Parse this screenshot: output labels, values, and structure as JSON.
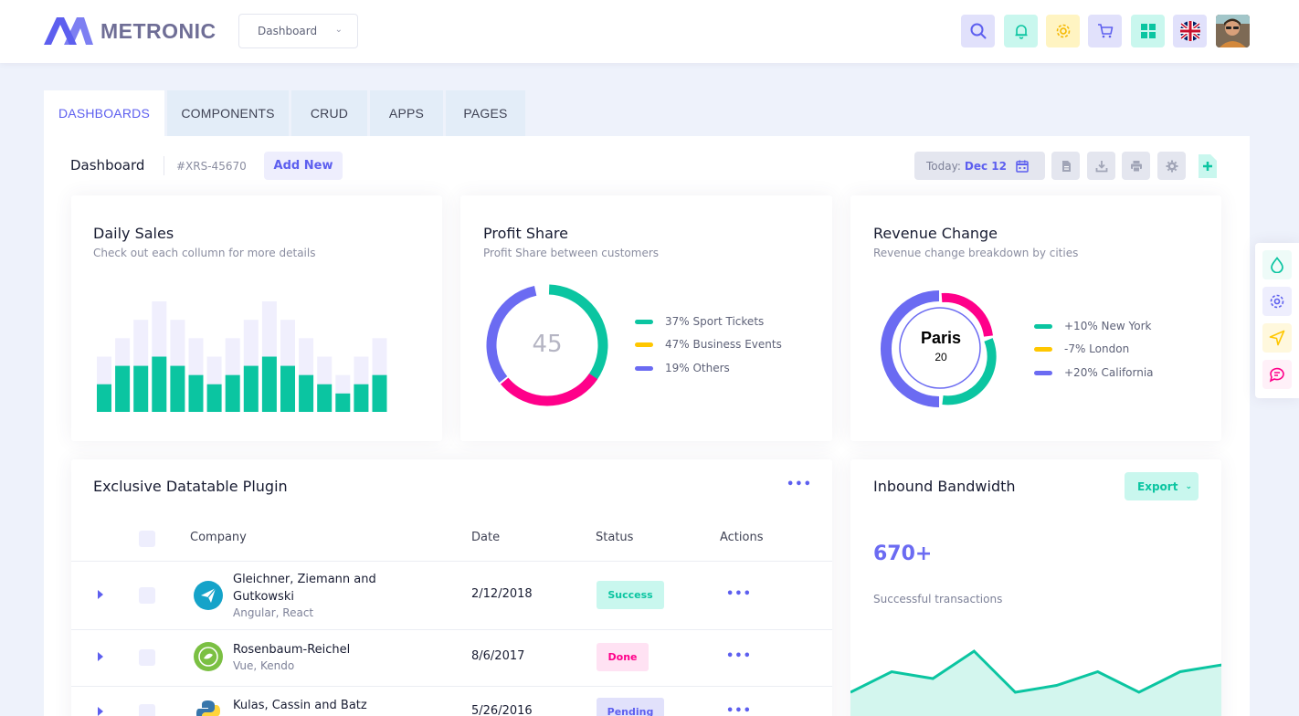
{
  "app": {
    "brand": "METRONIC",
    "dashboard_select": "Dashboard"
  },
  "header": {
    "icons": [
      "search-icon",
      "bell-icon",
      "gear-icon",
      "cart-icon",
      "apps-grid-icon",
      "uk-flag-icon",
      "user-avatar"
    ],
    "colors": {
      "accent": "#5d5fef",
      "success": "#0bc5a1",
      "warning": "#ffc700",
      "danger": "#ff008a"
    }
  },
  "tabs": [
    {
      "label": "DASHBOARDS",
      "active": true
    },
    {
      "label": "COMPONENTS",
      "active": false
    },
    {
      "label": "CRUD",
      "active": false
    },
    {
      "label": "APPS",
      "active": false
    },
    {
      "label": "PAGES",
      "active": false
    }
  ],
  "subheader": {
    "title": "Dashboard",
    "id": "#XRS-45670",
    "add_new": "Add New",
    "today_label": "Today:",
    "today_date": "Dec 12"
  },
  "daily_sales": {
    "title": "Daily Sales",
    "subtitle": "Check out each collumn for more details"
  },
  "profit_share": {
    "title": "Profit Share",
    "subtitle": "Profit Share between customers",
    "center": "45",
    "legend": [
      "37% Sport Tickets",
      "47% Business Events",
      "19% Others"
    ]
  },
  "revenue_change": {
    "title": "Revenue Change",
    "subtitle": "Revenue change breakdown by cities",
    "center_label": "Paris",
    "center_value": "20",
    "legend": [
      "+10% New York",
      "-7% London",
      "+20% California"
    ]
  },
  "datatable": {
    "title": "Exclusive Datatable Plugin",
    "columns": [
      "Company",
      "Date",
      "Status",
      "Actions"
    ],
    "rows": [
      {
        "name_line1": "Gleichner, Ziemann and",
        "name_line2": "Gutkowski",
        "tech": "Angular, React",
        "date": "2/12/2018",
        "status": "Success"
      },
      {
        "name_line1": "Rosenbaum-Reichel",
        "name_line2": "",
        "tech": "Vue, Kendo",
        "date": "8/6/2017",
        "status": "Done"
      },
      {
        "name_line1": "Kulas, Cassin and Batz",
        "name_line2": "",
        "tech": "",
        "date": "5/26/2016",
        "status": "Pending"
      }
    ]
  },
  "bandwidth": {
    "title": "Inbound Bandwidth",
    "export": "Export",
    "value": "670+",
    "caption": "Successful transactions"
  },
  "chart_data": [
    {
      "type": "bar",
      "title": "Daily Sales",
      "series": [
        {
          "values": [
            3,
            5,
            5,
            6,
            5,
            4,
            3,
            4,
            5,
            6,
            5,
            4,
            3,
            2,
            3,
            4
          ]
        },
        {
          "values": [
            6,
            8,
            10,
            12,
            10,
            8,
            6,
            8,
            10,
            12,
            10,
            8,
            6,
            4,
            6,
            8
          ]
        }
      ],
      "ylim": [
        0,
        12
      ]
    },
    {
      "type": "pie",
      "title": "Profit Share",
      "categories": [
        "Sport Tickets",
        "Business Events",
        "Others"
      ],
      "values": [
        37,
        47,
        19
      ]
    },
    {
      "type": "pie",
      "title": "Revenue Change",
      "categories": [
        "New York",
        "London",
        "California"
      ],
      "values": [
        10,
        7,
        20
      ]
    },
    {
      "type": "area",
      "title": "Inbound Bandwidth",
      "values": [
        30,
        45,
        40,
        60,
        30,
        35,
        45,
        30,
        45,
        50
      ]
    }
  ]
}
